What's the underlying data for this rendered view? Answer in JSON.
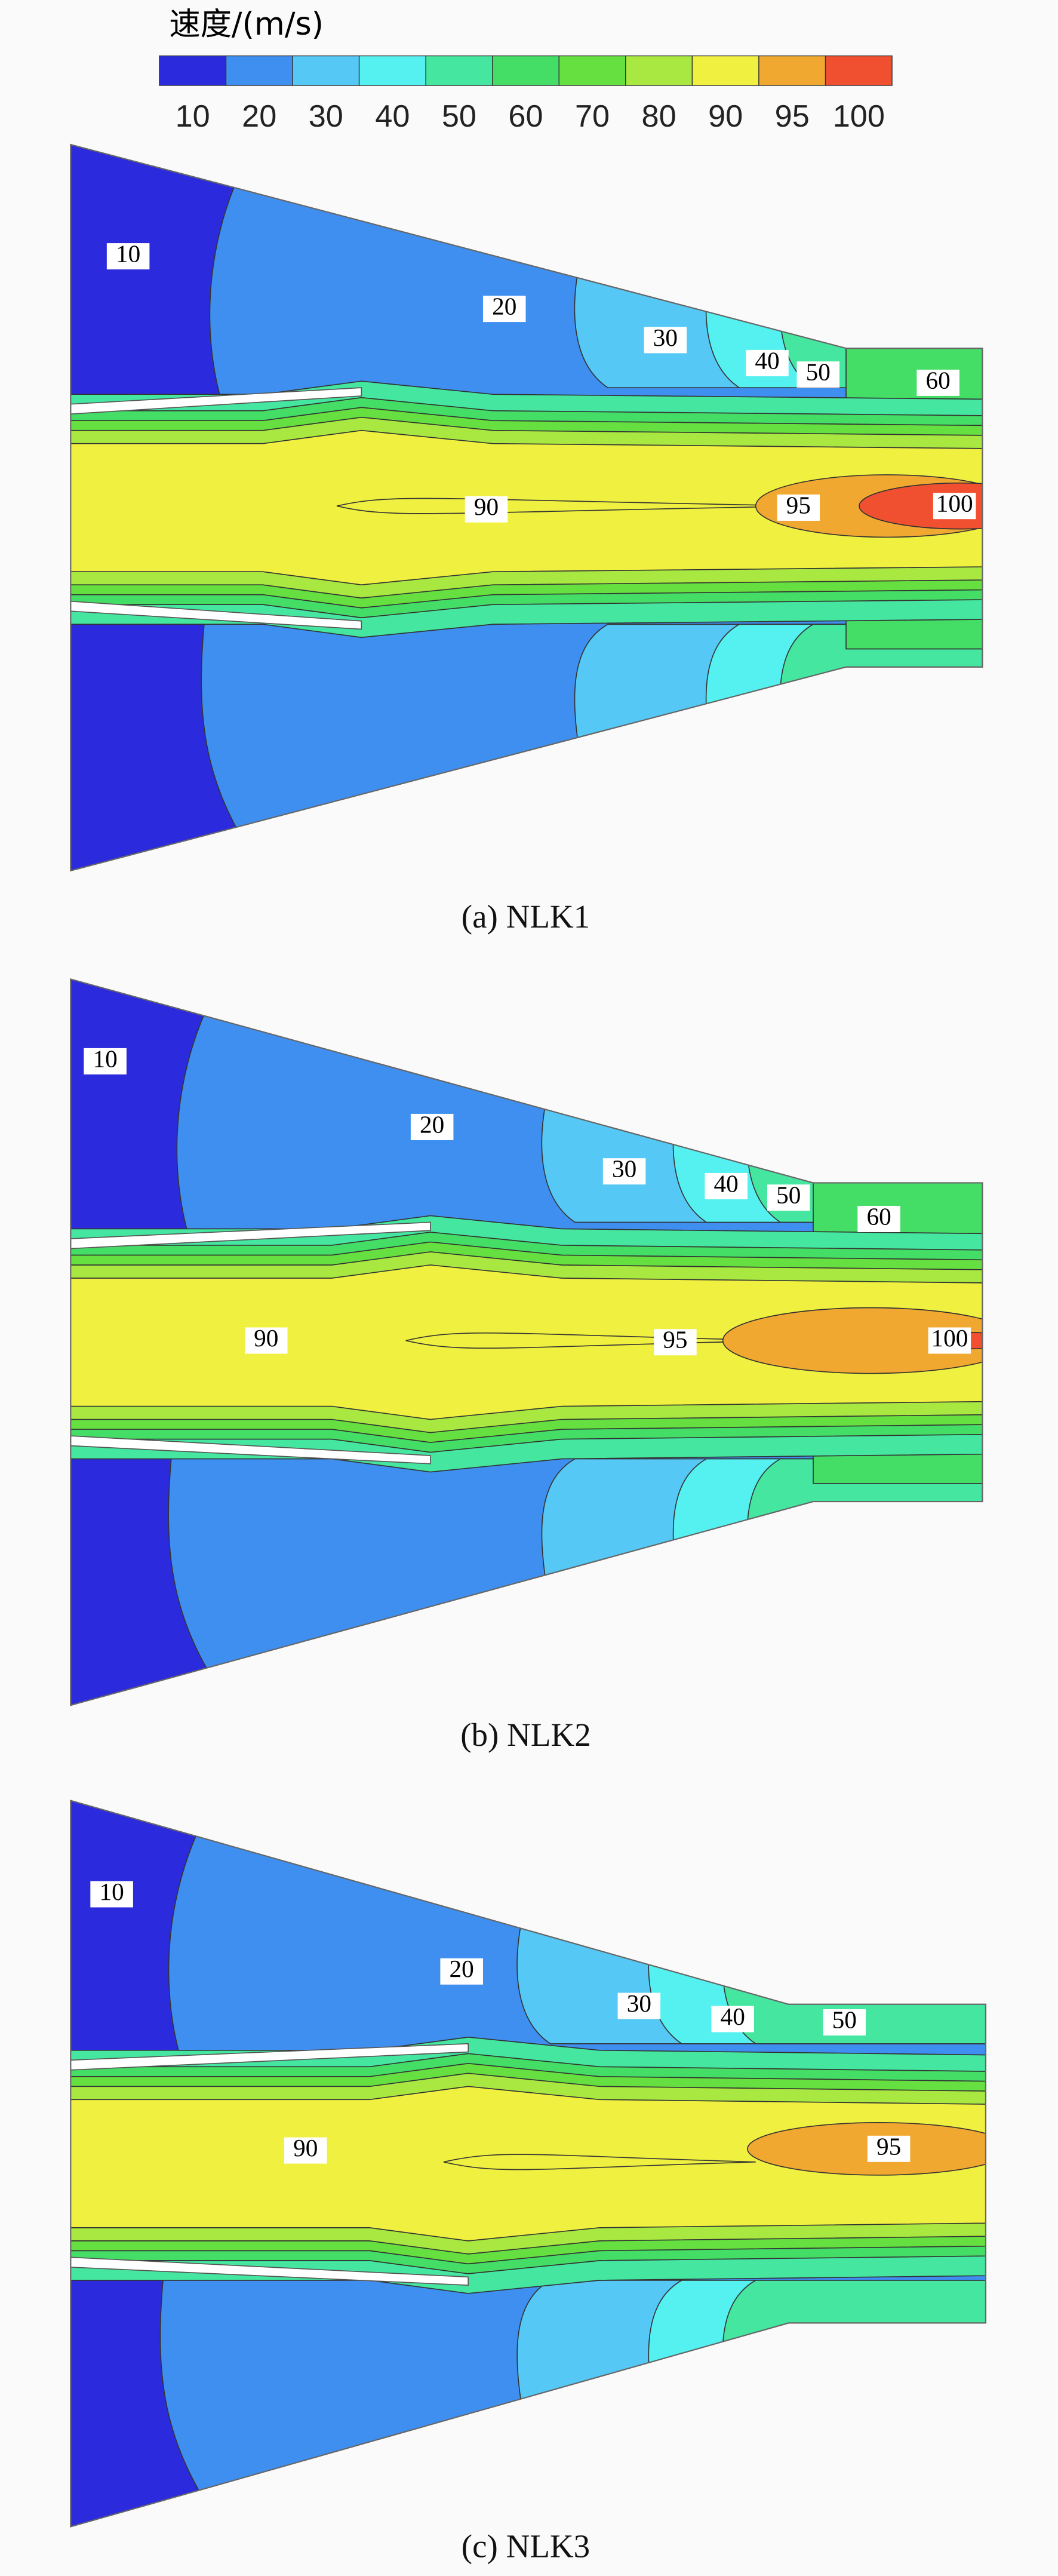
{
  "colorbar": {
    "title": "速度/(m/s)",
    "ticks": [
      10,
      20,
      30,
      40,
      50,
      60,
      70,
      80,
      90,
      95,
      100
    ],
    "colors": [
      "#2b2bdd",
      "#3f8ff0",
      "#55c8f5",
      "#55f0f0",
      "#44e6a0",
      "#44dd66",
      "#66e040",
      "#a8e840",
      "#f0f040",
      "#f0a830",
      "#f05030"
    ]
  },
  "panels": [
    {
      "caption": "(a) NLK1",
      "labels": [
        10,
        20,
        30,
        40,
        50,
        60,
        90,
        95,
        100
      ]
    },
    {
      "caption": "(b) NLK2",
      "labels": [
        10,
        20,
        30,
        40,
        50,
        60,
        90,
        95,
        100
      ]
    },
    {
      "caption": "(c) NLK3",
      "labels": [
        10,
        20,
        30,
        40,
        50,
        90,
        95
      ]
    }
  ]
}
